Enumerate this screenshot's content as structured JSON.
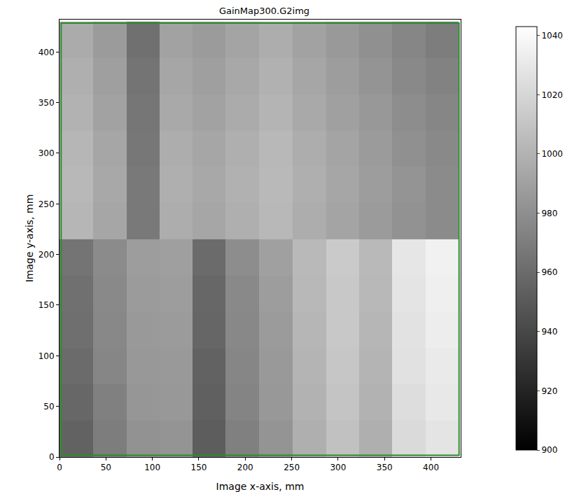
{
  "chart_data": {
    "type": "heatmap",
    "title": "GainMap300.G2img",
    "x_label": "Image x-axis, mm",
    "y_label": "Image y-axis, mm",
    "x": [
      18,
      54,
      90,
      125,
      161,
      197,
      233,
      269,
      305,
      340,
      376,
      412
    ],
    "y": [
      18,
      54,
      90,
      125,
      161,
      197,
      233,
      269,
      305,
      340,
      376,
      412
    ],
    "z": [
      [
        955,
        970,
        982,
        983,
        952,
        972,
        983,
        998,
        1008,
        998,
        1022,
        1028
      ],
      [
        958,
        972,
        984,
        985,
        954,
        974,
        985,
        1000,
        1010,
        1000,
        1024,
        1030
      ],
      [
        960,
        975,
        985,
        986,
        955,
        975,
        986,
        1001,
        1011,
        1001,
        1026,
        1031
      ],
      [
        962,
        976,
        986,
        987,
        957,
        976,
        987,
        1002,
        1012,
        1002,
        1027,
        1033
      ],
      [
        963,
        977,
        987,
        988,
        958,
        977,
        988,
        1003,
        1012,
        1003,
        1028,
        1034
      ],
      [
        965,
        978,
        988,
        989,
        960,
        979,
        990,
        1004,
        1013,
        1004,
        1029,
        1035
      ],
      [
        1002,
        993,
        968,
        997,
        993,
        998,
        1003,
        997,
        992,
        987,
        982,
        978
      ],
      [
        1003,
        994,
        968,
        998,
        994,
        999,
        1004,
        998,
        993,
        988,
        983,
        978
      ],
      [
        1002,
        993,
        967,
        997,
        993,
        998,
        1003,
        997,
        992,
        987,
        981,
        977
      ],
      [
        1000,
        991,
        966,
        995,
        991,
        996,
        1001,
        995,
        990,
        985,
        979,
        975
      ],
      [
        998,
        989,
        965,
        993,
        989,
        994,
        999,
        993,
        988,
        983,
        977,
        973
      ],
      [
        996,
        987,
        963,
        991,
        987,
        992,
        997,
        991,
        986,
        981,
        975,
        970
      ]
    ],
    "xlim": [
      0,
      432
    ],
    "ylim": [
      0,
      432
    ],
    "xticks": [
      0,
      50,
      100,
      150,
      200,
      250,
      300,
      350,
      400
    ],
    "yticks": [
      0,
      50,
      100,
      150,
      200,
      250,
      300,
      350,
      400
    ],
    "color_range": [
      900,
      1043
    ],
    "color_ticks": [
      900,
      920,
      940,
      960,
      980,
      1000,
      1020,
      1040
    ],
    "grid": false
  }
}
